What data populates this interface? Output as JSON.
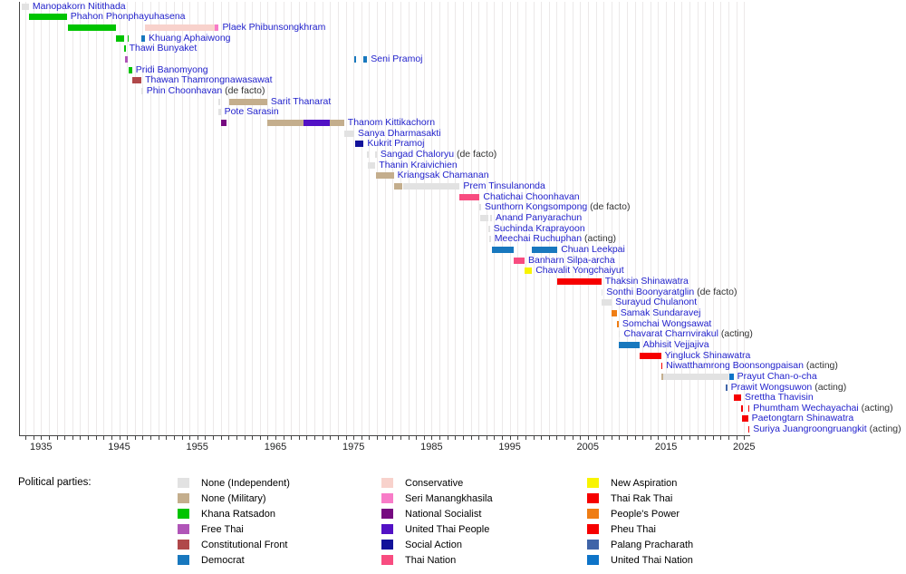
{
  "legend": {
    "title": "Political parties:",
    "columns": [
      [
        "independent",
        "military",
        "khana_ratsadon",
        "free_thai",
        "constitutional_front",
        "democrat"
      ],
      [
        "conservative",
        "seri_manangkhasila",
        "national_socialist",
        "united_thai_people",
        "social_action",
        "thai_nation"
      ],
      [
        "new_aspiration",
        "thai_rak_thai",
        "peoples_power",
        "pheu_thai",
        "palang_pracharath",
        "united_thai_nation"
      ]
    ]
  },
  "chart_data": {
    "type": "bar",
    "variant": "horizontal-gantt-timeline",
    "title": "",
    "xlabel": "",
    "ylabel": "",
    "grid": "vertical, 1-year interval",
    "legend_position": "bottom",
    "x_axis": {
      "range": [
        1932.2,
        2025.7
      ],
      "major_tick_labels": [
        "1935",
        "1945",
        "1955",
        "1965",
        "1975",
        "1985",
        "1995",
        "2005",
        "2015",
        "2025"
      ],
      "major_tick_years": [
        1935,
        1945,
        1955,
        1965,
        1975,
        1985,
        1995,
        2005,
        2015,
        2025
      ],
      "minor_tick_interval_years": 1
    },
    "parties": {
      "independent": {
        "label": "None (Independent)",
        "color": "#e2e2e2"
      },
      "military": {
        "label": "None (Military)",
        "color": "#c4ae8d"
      },
      "khana_ratsadon": {
        "label": "Khana Ratsadon",
        "color": "#00c400"
      },
      "free_thai": {
        "label": "Free Thai",
        "color": "#b055b8"
      },
      "constitutional_front": {
        "label": "Constitutional Front",
        "color": "#b0484a"
      },
      "democrat": {
        "label": "Democrat",
        "color": "#1878be"
      },
      "conservative": {
        "label": "Conservative",
        "color": "#f8d2cc"
      },
      "seri_manangkhasila": {
        "label": "Seri Manangkhasila",
        "color": "#f87cc8"
      },
      "national_socialist": {
        "label": "National Socialist",
        "color": "#760a80"
      },
      "united_thai_people": {
        "label": "United Thai People",
        "color": "#5211c5"
      },
      "social_action": {
        "label": "Social Action",
        "color": "#12129a"
      },
      "thai_nation": {
        "label": "Thai Nation",
        "color": "#f84c80"
      },
      "new_aspiration": {
        "label": "New Aspiration",
        "color": "#f8f400"
      },
      "thai_rak_thai": {
        "label": "Thai Rak Thai",
        "color": "#f60000"
      },
      "peoples_power": {
        "label": "People's Power",
        "color": "#ef7d14"
      },
      "pheu_thai": {
        "label": "Pheu Thai",
        "color": "#f60000"
      },
      "palang_pracharath": {
        "label": "Palang Pracharath",
        "color": "#3f64a8"
      },
      "united_thai_nation": {
        "label": "United Thai Nation",
        "color": "#0e74c8"
      }
    },
    "rows": [
      {
        "name": "Manopakorn Nitithada",
        "suffix": "",
        "segments": [
          [
            "independent",
            1932.5,
            1933.45
          ]
        ]
      },
      {
        "name": "Phahon Phonphayuhasena",
        "suffix": "",
        "segments": [
          [
            "khana_ratsadon",
            1933.45,
            1938.3
          ]
        ]
      },
      {
        "name": "Plaek Phibunsongkhram",
        "suffix": "",
        "segments": [
          [
            "khana_ratsadon",
            1938.45,
            1944.6
          ],
          [
            "conservative",
            1948.3,
            1957.2
          ],
          [
            "seri_manangkhasila",
            1957.2,
            1957.75
          ]
        ]
      },
      {
        "name": "Khuang Aphaiwong",
        "suffix": "",
        "segments": [
          [
            "khana_ratsadon",
            1944.6,
            1945.65
          ],
          [
            "khana_ratsadon",
            1946.08,
            1946.25
          ],
          [
            "democrat",
            1947.85,
            1948.3
          ]
        ]
      },
      {
        "name": "Thawi Bunyaket",
        "suffix": "",
        "segments": [
          [
            "khana_ratsadon",
            1945.63,
            1945.78
          ]
        ]
      },
      {
        "name": "Seni Pramoj",
        "suffix": "",
        "segments": [
          [
            "free_thai",
            1945.7,
            1946.05
          ],
          [
            "democrat",
            1975.1,
            1975.3
          ],
          [
            "democrat",
            1976.3,
            1976.75
          ]
        ]
      },
      {
        "name": "Pridi Banomyong",
        "suffix": "",
        "segments": [
          [
            "khana_ratsadon",
            1946.25,
            1946.65
          ]
        ]
      },
      {
        "name": "Thawan Thamrongnawasawat",
        "suffix": "",
        "segments": [
          [
            "constitutional_front",
            1946.65,
            1947.85
          ]
        ]
      },
      {
        "name": "Phin Choonhavan",
        "suffix": "(de facto)",
        "segments": [
          [
            "independent",
            1947.85,
            1948.0
          ]
        ]
      },
      {
        "name": "Sarit Thanarat",
        "suffix": "",
        "segments": [
          [
            "independent",
            1957.7,
            1957.85
          ],
          [
            "military",
            1959.1,
            1963.95
          ]
        ]
      },
      {
        "name": "Pote Sarasin",
        "suffix": "",
        "segments": [
          [
            "independent",
            1957.7,
            1958.0
          ]
        ]
      },
      {
        "name": "Thanom Kittikachorn",
        "suffix": "",
        "segments": [
          [
            "national_socialist",
            1958.0,
            1958.8
          ],
          [
            "military",
            1963.95,
            1968.6
          ],
          [
            "united_thai_people",
            1968.6,
            1971.9
          ],
          [
            "military",
            1971.9,
            1973.8
          ]
        ]
      },
      {
        "name": "Sanya Dharmasakti",
        "suffix": "",
        "segments": [
          [
            "independent",
            1973.8,
            1975.1
          ]
        ]
      },
      {
        "name": "Kukrit Pramoj",
        "suffix": "",
        "segments": [
          [
            "social_action",
            1975.25,
            1976.3
          ]
        ]
      },
      {
        "name": "Sangad Chaloryu",
        "suffix": "(de facto)",
        "segments": [
          [
            "independent",
            1976.75,
            1976.9
          ],
          [
            "independent",
            1977.8,
            1977.95
          ]
        ]
      },
      {
        "name": "Thanin Kraivichien",
        "suffix": "",
        "segments": [
          [
            "independent",
            1976.8,
            1977.8
          ]
        ]
      },
      {
        "name": "Kriangsak Chamanan",
        "suffix": "",
        "segments": [
          [
            "military",
            1977.85,
            1980.15
          ]
        ]
      },
      {
        "name": "Prem Tinsulanonda",
        "suffix": "",
        "segments": [
          [
            "military",
            1980.15,
            1981.3
          ],
          [
            "independent",
            1981.3,
            1988.6
          ]
        ]
      },
      {
        "name": "Chatichai Choonhavan",
        "suffix": "",
        "segments": [
          [
            "thai_nation",
            1988.6,
            1991.15
          ]
        ]
      },
      {
        "name": "Sunthorn Kongsompong",
        "suffix": "(de facto)",
        "segments": [
          [
            "independent",
            1991.15,
            1991.3
          ]
        ]
      },
      {
        "name": "Anand Panyarachun",
        "suffix": "",
        "segments": [
          [
            "independent",
            1991.2,
            1992.27
          ],
          [
            "independent",
            1992.44,
            1992.73
          ]
        ]
      },
      {
        "name": "Suchinda Kraprayoon",
        "suffix": "",
        "segments": [
          [
            "independent",
            1992.27,
            1992.42
          ]
        ]
      },
      {
        "name": "Meechai Ruchuphan",
        "suffix": "(acting)",
        "segments": [
          [
            "independent",
            1992.4,
            1992.52
          ]
        ]
      },
      {
        "name": "Chuan Leekpai",
        "suffix": "",
        "segments": [
          [
            "democrat",
            1992.73,
            1995.53
          ],
          [
            "democrat",
            1997.85,
            2001.1
          ]
        ]
      },
      {
        "name": "Banharn Silpa-archa",
        "suffix": "",
        "segments": [
          [
            "thai_nation",
            1995.53,
            1996.9
          ]
        ]
      },
      {
        "name": "Chavalit Yongchaiyut",
        "suffix": "",
        "segments": [
          [
            "new_aspiration",
            1996.9,
            1997.85
          ]
        ]
      },
      {
        "name": "Thaksin Shinawatra",
        "suffix": "",
        "segments": [
          [
            "thai_rak_thai",
            2001.1,
            2006.72
          ]
        ]
      },
      {
        "name": "Sonthi Boonyaratglin",
        "suffix": "(de facto)",
        "segments": [
          [
            "independent",
            2006.72,
            2006.87
          ]
        ]
      },
      {
        "name": "Surayud Chulanont",
        "suffix": "",
        "segments": [
          [
            "independent",
            2006.75,
            2008.07
          ]
        ]
      },
      {
        "name": "Samak Sundaravej",
        "suffix": "",
        "segments": [
          [
            "peoples_power",
            2008.07,
            2008.7
          ]
        ]
      },
      {
        "name": "Somchai Wongsawat",
        "suffix": "",
        "segments": [
          [
            "peoples_power",
            2008.72,
            2008.95
          ]
        ]
      },
      {
        "name": "Chavarat Charnvirakul",
        "suffix": "(acting)",
        "segments": [
          [
            "independent",
            2008.95,
            2009.05
          ]
        ]
      },
      {
        "name": "Abhisit Vejjajiva",
        "suffix": "",
        "segments": [
          [
            "democrat",
            2008.95,
            2011.6
          ]
        ]
      },
      {
        "name": "Yingluck Shinawatra",
        "suffix": "",
        "segments": [
          [
            "pheu_thai",
            2011.6,
            2014.37
          ]
        ]
      },
      {
        "name": "Niwatthamrong Boonsongpaisan",
        "suffix": "(acting)",
        "segments": [
          [
            "pheu_thai",
            2014.37,
            2014.47
          ]
        ]
      },
      {
        "name": "Prayut Chan-o-cha",
        "suffix": "",
        "segments": [
          [
            "military",
            2014.4,
            2014.65
          ],
          [
            "independent",
            2014.65,
            2023.05
          ],
          [
            "united_thai_nation",
            2023.05,
            2023.64
          ]
        ]
      },
      {
        "name": "Prawit Wongsuwon",
        "suffix": "(acting)",
        "segments": [
          [
            "palang_pracharath",
            2022.65,
            2022.78
          ]
        ]
      },
      {
        "name": "Srettha Thavisin",
        "suffix": "",
        "segments": [
          [
            "pheu_thai",
            2023.64,
            2024.62
          ]
        ]
      },
      {
        "name": "Phumtham Wechayachai",
        "suffix": "(acting)",
        "segments": [
          [
            "pheu_thai",
            2024.62,
            2024.72
          ],
          [
            "pheu_thai",
            2025.5,
            2025.6
          ]
        ]
      },
      {
        "name": "Paetongtarn Shinawatra",
        "suffix": "",
        "segments": [
          [
            "pheu_thai",
            2024.72,
            2025.5
          ]
        ]
      },
      {
        "name": "Suriya Juangroongruangkit",
        "suffix": "(acting)",
        "segments": [
          [
            "pheu_thai",
            2025.5,
            2025.58
          ]
        ]
      }
    ]
  }
}
